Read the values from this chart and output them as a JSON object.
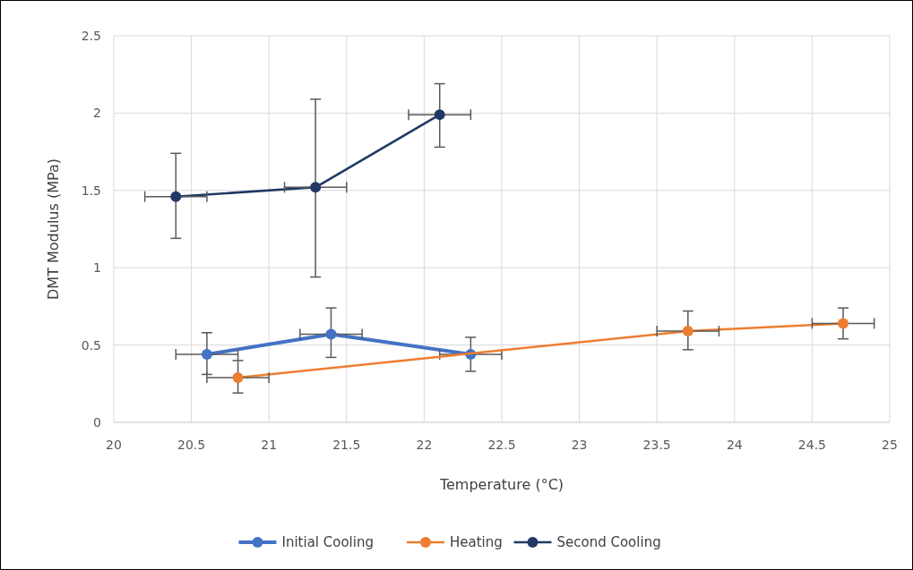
{
  "chart_data": {
    "type": "line",
    "xlabel": "Temperature (°C)",
    "ylabel": "DMT Modulus (MPa)",
    "xlim": [
      20,
      25
    ],
    "xticks": [
      20,
      {
        "value": 20.5,
        "label": "20.5"
      },
      21,
      {
        "value": 21.5,
        "label": "21.5"
      },
      22,
      {
        "value": 22.5,
        "label": "22.5"
      },
      23,
      {
        "value": 23.5,
        "label": "23.5"
      },
      24,
      {
        "value": 24.5,
        "label": "24.5"
      },
      25
    ],
    "ylim": [
      0,
      2.5
    ],
    "yticks": [
      0,
      0.5,
      1,
      1.5,
      2,
      2.5
    ],
    "grid": true,
    "legend": "bottom",
    "marker": "circle",
    "line_style": "solid",
    "series": [
      {
        "name": "Initial Cooling",
        "color": "#4472c4",
        "x": [
          20.6,
          21.4,
          22.3
        ],
        "values": [
          0.44,
          0.57,
          0.44
        ],
        "errors": [
          [
            0.31,
            0.58
          ],
          [
            0.42,
            0.74
          ],
          [
            0.33,
            0.55
          ]
        ],
        "xerrors": [
          0.2,
          0.2,
          0.2
        ]
      },
      {
        "name": "Heating",
        "color": "#ed7d31",
        "x": [
          20.8,
          23.7,
          24.7
        ],
        "values": [
          0.29,
          0.59,
          0.64
        ],
        "errors": [
          [
            0.19,
            0.4
          ],
          [
            0.47,
            0.72
          ],
          [
            0.54,
            0.74
          ]
        ],
        "xerrors": [
          0.2,
          0.2,
          0.2
        ]
      },
      {
        "name": "Second Cooling",
        "color": "#203864",
        "x": [
          20.4,
          21.3,
          22.1
        ],
        "values": [
          1.46,
          1.52,
          1.99
        ],
        "errors": [
          [
            1.19,
            1.74
          ],
          [
            0.94,
            2.09
          ],
          [
            1.78,
            2.19
          ]
        ],
        "xerrors": [
          0.2,
          0.2,
          0.2
        ]
      }
    ]
  }
}
